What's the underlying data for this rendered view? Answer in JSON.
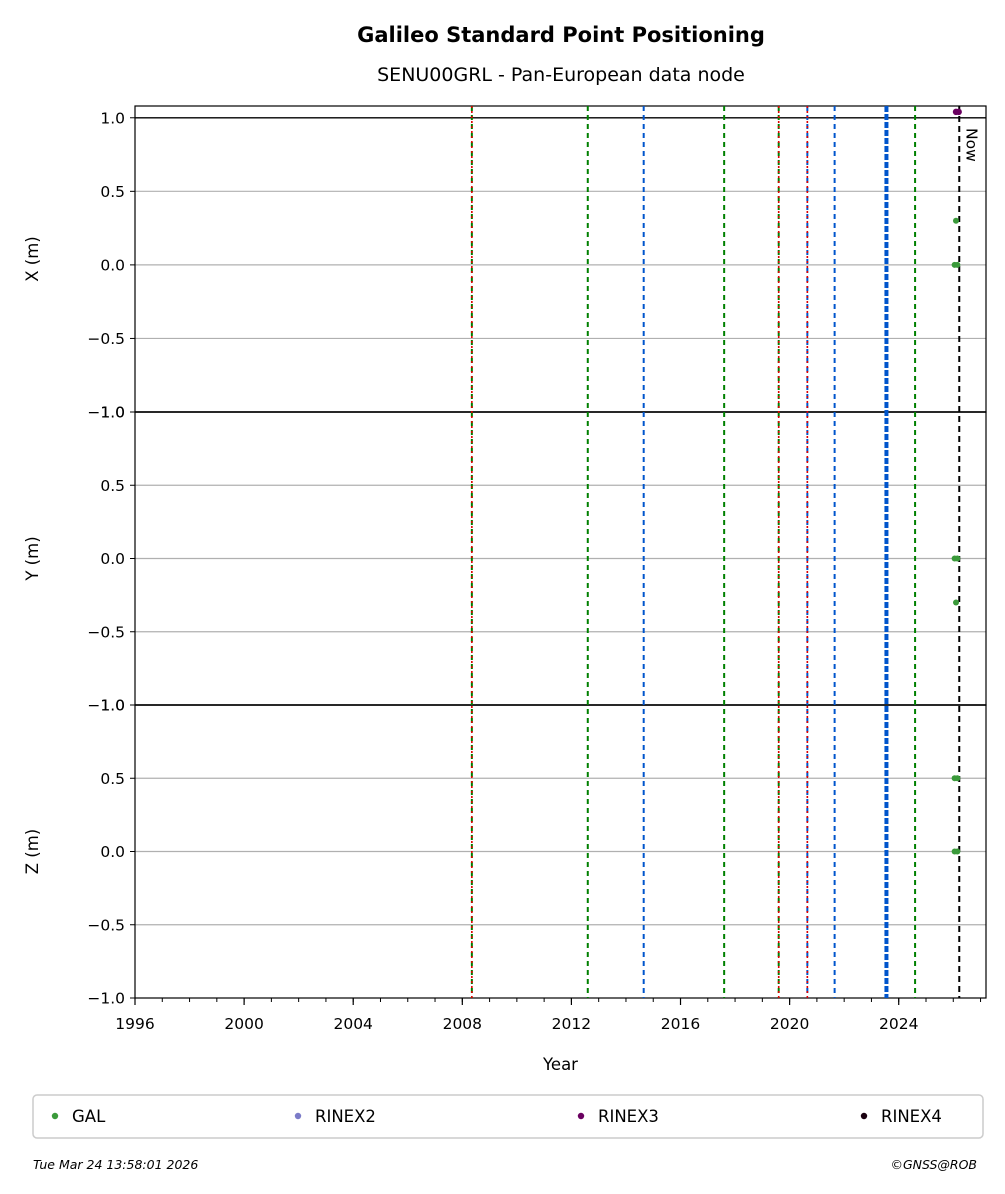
{
  "header": {
    "title": "Galileo Standard Point Positioning",
    "subtitle": "SENU00GRL - Pan-European data node"
  },
  "chart_data": {
    "type": "scatter",
    "title": "Galileo Standard Point Positioning",
    "subtitle": "SENU00GRL - Pan-European data node",
    "xlabel": "Year",
    "xlim": [
      1996.0,
      2027.2
    ],
    "x_ticks": [
      "1996",
      "2000",
      "2004",
      "2008",
      "2012",
      "2016",
      "2020",
      "2024"
    ],
    "x_tick_values": [
      1996,
      2000,
      2004,
      2008,
      2012,
      2016,
      2020,
      2024
    ],
    "panels": [
      {
        "ylabel": "X (m)",
        "ylim": [
          -1.0,
          1.08
        ],
        "y_ticks": [
          "1.0",
          "0.5",
          "0.0",
          "−0.5",
          "−1.0"
        ],
        "y_tick_values": [
          1.0,
          0.5,
          0.0,
          -0.5,
          -1.0
        ],
        "reference_line": 1.0,
        "points": [
          {
            "series": "RINEX3",
            "x": 2026.1,
            "y": 1.04
          },
          {
            "series": "RINEX3",
            "x": 2026.2,
            "y": 1.04
          },
          {
            "series": "GAL",
            "x": 2026.1,
            "y": 0.3
          },
          {
            "series": "GAL",
            "x": 2026.05,
            "y": 0.0
          },
          {
            "series": "GAL",
            "x": 2026.15,
            "y": 0.0
          }
        ]
      },
      {
        "ylabel": "Y (m)",
        "ylim": [
          -1.0,
          1.0
        ],
        "y_ticks": [
          "1.0",
          "0.5",
          "0.0",
          "−0.5",
          "−1.0"
        ],
        "y_tick_values": [
          1.0,
          0.5,
          0.0,
          -0.5,
          -1.0
        ],
        "reference_line": 1.0,
        "points": [
          {
            "series": "GAL",
            "x": 2026.05,
            "y": 0.0
          },
          {
            "series": "GAL",
            "x": 2026.15,
            "y": 0.0
          },
          {
            "series": "GAL",
            "x": 2026.1,
            "y": -0.3
          }
        ]
      },
      {
        "ylabel": "Z (m)",
        "ylim": [
          -1.0,
          1.0
        ],
        "y_ticks": [
          "1.0",
          "0.5",
          "0.0",
          "−0.5",
          "−1.0"
        ],
        "y_tick_values": [
          1.0,
          0.5,
          0.0,
          -0.5,
          -1.0
        ],
        "reference_line": 1.0,
        "points": [
          {
            "series": "GAL",
            "x": 2026.05,
            "y": 0.5
          },
          {
            "series": "GAL",
            "x": 2026.15,
            "y": 0.5
          },
          {
            "series": "GAL",
            "x": 2026.05,
            "y": 0.0
          },
          {
            "series": "GAL",
            "x": 2026.15,
            "y": 0.0
          }
        ]
      }
    ],
    "event_lines": [
      {
        "x": 2008.35,
        "color": "#008000",
        "style": "dashed"
      },
      {
        "x": 2008.35,
        "color": "#e00000",
        "style": "dotted"
      },
      {
        "x": 2012.6,
        "color": "#008000",
        "style": "dashed"
      },
      {
        "x": 2014.65,
        "color": "#0055cc",
        "style": "dashed"
      },
      {
        "x": 2017.6,
        "color": "#008000",
        "style": "dashed"
      },
      {
        "x": 2019.6,
        "color": "#008000",
        "style": "dashed"
      },
      {
        "x": 2019.6,
        "color": "#e00000",
        "style": "dotted"
      },
      {
        "x": 2020.65,
        "color": "#0055cc",
        "style": "dashed"
      },
      {
        "x": 2020.65,
        "color": "#e00000",
        "style": "dotted"
      },
      {
        "x": 2021.65,
        "color": "#0055cc",
        "style": "dashed"
      },
      {
        "x": 2023.55,
        "color": "#0055cc",
        "style": "thick-dashed"
      },
      {
        "x": 2024.6,
        "color": "#008000",
        "style": "dashed"
      }
    ],
    "now_line": {
      "x": 2026.22,
      "label": "Now",
      "color": "#000000"
    },
    "legend": {
      "placement": "bottom",
      "entries": [
        {
          "name": "GAL",
          "color": "#3a9a3a"
        },
        {
          "name": "RINEX2",
          "color": "#7b7bc8"
        },
        {
          "name": "RINEX3",
          "color": "#6a0060"
        },
        {
          "name": "RINEX4",
          "color": "#1a0010"
        }
      ]
    },
    "grid": "horizontal"
  },
  "footer": {
    "timestamp": "Tue Mar 24 13:58:01 2026",
    "copyright": "©GNSS@ROB"
  }
}
